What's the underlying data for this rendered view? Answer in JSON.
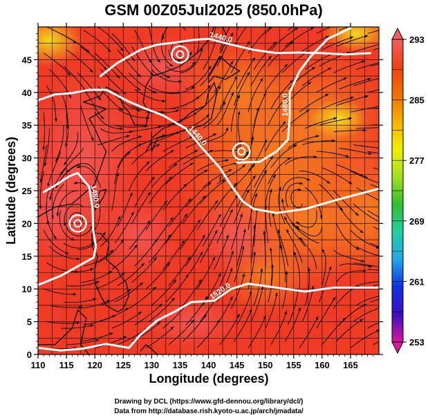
{
  "chart_data": {
    "type": "heatmap",
    "title": "GSM 00Z05Jul2025 (850.0hPa)",
    "xlabel": "Longitude (degrees)",
    "ylabel": "Latitude  (degrees)",
    "xlim": [
      110,
      170
    ],
    "ylim": [
      0,
      50
    ],
    "x_ticks": [
      110,
      115,
      120,
      125,
      130,
      135,
      140,
      145,
      150,
      155,
      160,
      165
    ],
    "y_ticks": [
      0,
      5,
      10,
      15,
      20,
      25,
      30,
      35,
      40,
      45
    ],
    "grid": true,
    "colorbar": {
      "position": "right",
      "min": 253,
      "max": 293,
      "tick_labels": [
        "293",
        "285",
        "277",
        "269",
        "261",
        "253"
      ],
      "tick_values": [
        293,
        285,
        277,
        269,
        261,
        253
      ],
      "colors": [
        "#d81898",
        "#3a10c0",
        "#1030e0",
        "#20a8e8",
        "#20d0a0",
        "#30c030",
        "#a0e020",
        "#f0f000",
        "#f8b000",
        "#f07000",
        "#f04010",
        "#f06060"
      ]
    },
    "field_colors": {
      "warm_red": "#ef3b24",
      "orange": "#f5801e",
      "pink": "#f05a5a",
      "yellow": "#f2e21a"
    },
    "contours": [
      {
        "label": "1440.0",
        "points": [
          [
            121,
            42.5
          ],
          [
            124,
            44.5
          ],
          [
            128,
            46.5
          ],
          [
            131,
            47.3
          ],
          [
            134,
            47.6
          ],
          [
            137,
            48.0
          ],
          [
            140,
            48.2
          ],
          [
            144,
            47.3
          ],
          [
            148,
            46.5
          ],
          [
            152,
            46.0
          ],
          [
            156,
            46.1
          ],
          [
            160,
            46.0
          ],
          [
            164,
            45.8
          ],
          [
            168.5,
            46.0
          ]
        ]
      },
      {
        "label": "1440.0",
        "points": [
          [
            110,
            38.8
          ],
          [
            113,
            39.7
          ],
          [
            116,
            39.9
          ],
          [
            119,
            40.4
          ],
          [
            122,
            40.4
          ],
          [
            126,
            38.6
          ],
          [
            129,
            37.5
          ],
          [
            132,
            36.5
          ],
          [
            136,
            34.5
          ],
          [
            139,
            31.4
          ],
          [
            142,
            28.5
          ],
          [
            144,
            25.8
          ],
          [
            146,
            23.4
          ],
          [
            148,
            22.2
          ],
          [
            152,
            21.6
          ],
          [
            157,
            22.2
          ],
          [
            163,
            23.7
          ],
          [
            170,
            25.3
          ]
        ]
      },
      {
        "label": "1480.0",
        "points": [
          [
            111,
            24.8
          ],
          [
            113,
            25.8
          ],
          [
            115.5,
            27.2
          ],
          [
            117,
            27.7
          ],
          [
            119,
            25.6
          ],
          [
            119.6,
            22.4
          ],
          [
            119.7,
            19.0
          ],
          [
            120.2,
            16.5
          ],
          [
            119.8,
            14.8
          ],
          [
            114,
            12.0
          ],
          [
            110,
            10.6
          ]
        ]
      },
      {
        "label": "1480.0",
        "points": [
          [
            145,
            29.3
          ],
          [
            149,
            29.4
          ],
          [
            152,
            31.0
          ],
          [
            154,
            32.8
          ],
          [
            154.3,
            36.2
          ],
          [
            154.3,
            40.0
          ],
          [
            156,
            43.2
          ],
          [
            158,
            45.5
          ],
          [
            161,
            48.2
          ],
          [
            165,
            49.8
          ]
        ]
      },
      {
        "label": "1520.0",
        "points": [
          [
            126,
            1.0
          ],
          [
            128,
            3.0
          ],
          [
            131,
            5.2
          ],
          [
            134,
            6.5
          ],
          [
            137,
            8.0
          ],
          [
            141,
            8.2
          ],
          [
            144,
            10.0
          ],
          [
            147,
            10.8
          ],
          [
            152,
            10.2
          ],
          [
            157,
            9.6
          ],
          [
            162,
            10.2
          ],
          [
            170,
            10.2
          ]
        ]
      },
      {
        "label": "",
        "points": [
          [
            110,
            1.0
          ],
          [
            114,
            0.6
          ],
          [
            118,
            0.9
          ],
          [
            122,
            1.6
          ],
          [
            126,
            1.0
          ]
        ]
      }
    ],
    "centers": [
      {
        "name": "low",
        "lon": 145.8,
        "lat": 31.0
      },
      {
        "name": "low",
        "lon": 117.0,
        "lat": 20.0
      },
      {
        "name": "low",
        "lon": 135.0,
        "lat": 45.8
      }
    ],
    "streamline_flow": "anticyclonic around subtropical high near 150E 25N"
  },
  "credits": [
    "Drawing by DCL (https://www.gfd-dennou.org/library/dcl/)",
    "Data from http://database.rish.kyoto-u.ac.jp/arch/jmadata/"
  ]
}
